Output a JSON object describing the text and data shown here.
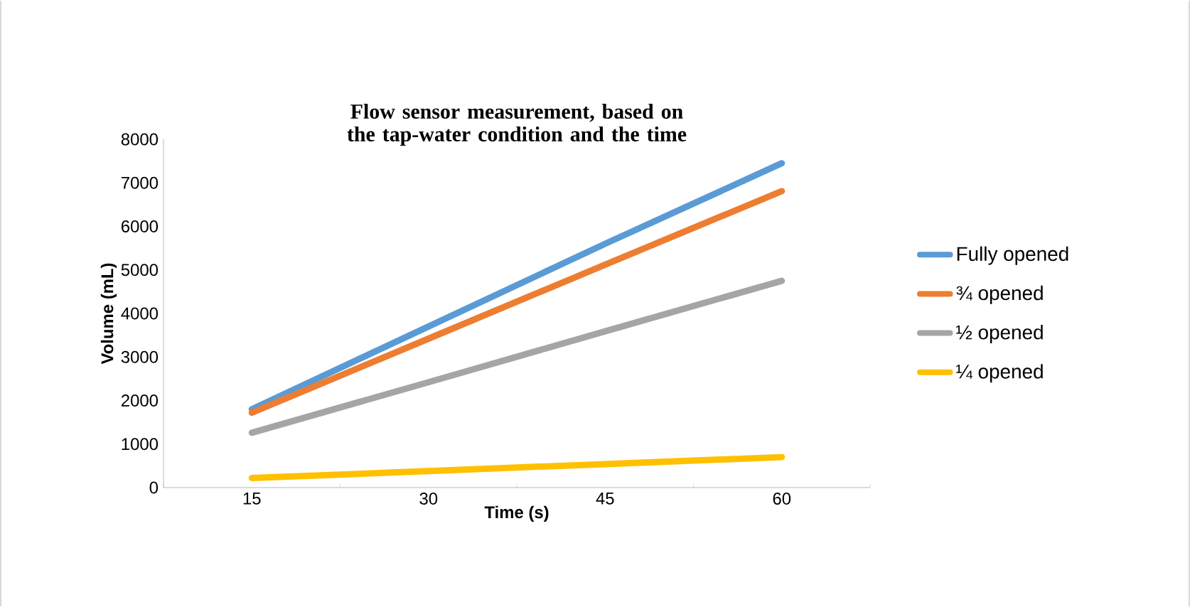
{
  "chart_data": {
    "type": "line",
    "title": "Flow sensor measurement, based on the tap-water condition and the time",
    "xlabel": "Time (s)",
    "ylabel": "Volume (mL)",
    "categories": [
      "15",
      "30",
      "45",
      "60"
    ],
    "series": [
      {
        "name": "Fully opened",
        "color": "#5b9bd5",
        "values": [
          1800,
          3700,
          5600,
          7450
        ]
      },
      {
        "name": "¾ opened",
        "color": "#ed7d31",
        "values": [
          1720,
          3420,
          5120,
          6810
        ]
      },
      {
        "name": "½ opened",
        "color": "#a5a5a5",
        "values": [
          1260,
          2420,
          3590,
          4750
        ]
      },
      {
        "name": "¼ opened",
        "color": "#ffc000",
        "values": [
          220,
          380,
          540,
          700
        ]
      }
    ],
    "ylim": [
      0,
      8000
    ],
    "yticks": [
      0,
      1000,
      2000,
      3000,
      4000,
      5000,
      6000,
      7000,
      8000
    ],
    "grid": false,
    "legend": "right",
    "marker": "none",
    "line_style": "solid"
  }
}
